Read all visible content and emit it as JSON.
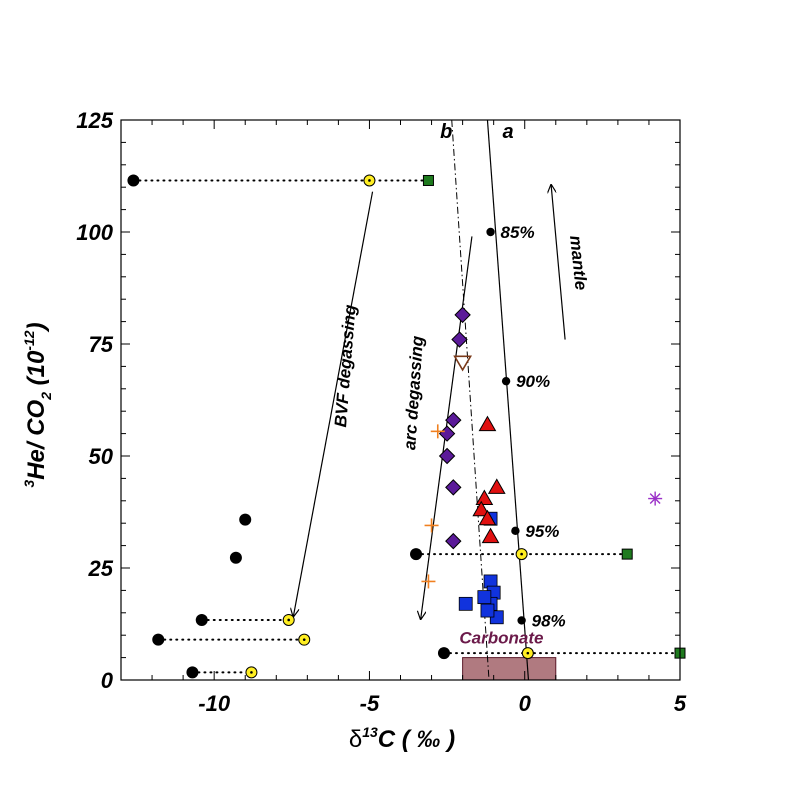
{
  "chart_data": {
    "type": "scatter",
    "xlim": [
      -13,
      5
    ],
    "ylim": [
      0,
      125
    ],
    "x_ticks": [
      -10,
      -5,
      0,
      5
    ],
    "y_ticks": [
      0,
      25,
      50,
      75,
      100,
      125
    ],
    "xlabel": {
      "delta": "δ",
      "sup": "13",
      "main": "C ( ",
      "unit": "‰",
      "close": " )"
    },
    "ylabel": {
      "sup1": "3",
      "main1": "He/ CO",
      "sub": "2",
      "main2": " (10",
      "sup2": "-12",
      "close": ")"
    },
    "colors": {
      "black_point": "#000000",
      "yellow_point": "#ffee22",
      "green_square": "#1e7a1e",
      "purple_diamond": "#5b1a99",
      "red_triangle": "#e01010",
      "blue_square": "#1133dd",
      "orange_cross": "#f08020",
      "brown_triangle": "#7a3a1a",
      "star": "#9b30c8",
      "carbonate_box": "#b07a80",
      "carbonate_text": "#6b1a4a"
    },
    "black_points": [
      {
        "x": -12.6,
        "y": 111.5
      },
      {
        "x": -9.0,
        "y": 35.8
      },
      {
        "x": -9.3,
        "y": 27.3
      },
      {
        "x": -10.4,
        "y": 13.4
      },
      {
        "x": -11.8,
        "y": 9.0
      },
      {
        "x": -10.7,
        "y": 1.7
      },
      {
        "x": -3.5,
        "y": 28.1
      },
      {
        "x": -2.6,
        "y": 6.0
      }
    ],
    "yellow_points": [
      {
        "x": -5.0,
        "y": 111.5
      },
      {
        "x": -7.6,
        "y": 13.4
      },
      {
        "x": -7.1,
        "y": 9.0
      },
      {
        "x": -8.8,
        "y": 1.7
      },
      {
        "x": -0.1,
        "y": 28.1
      },
      {
        "x": 0.1,
        "y": 6.0
      }
    ],
    "green_squares": [
      {
        "x": -3.1,
        "y": 111.5
      },
      {
        "x": 3.3,
        "y": 28.1
      },
      {
        "x": 5.0,
        "y": 6.0
      }
    ],
    "dotted_links": [
      {
        "x1": -12.6,
        "x2": -3.1,
        "y": 111.5
      },
      {
        "x1": -10.4,
        "x2": -7.6,
        "y": 13.4
      },
      {
        "x1": -11.8,
        "x2": -7.1,
        "y": 9.0
      },
      {
        "x1": -10.7,
        "x2": -8.8,
        "y": 1.7
      },
      {
        "x1": -3.5,
        "x2": 3.3,
        "y": 28.1
      },
      {
        "x1": -2.6,
        "x2": 5.0,
        "y": 6.0
      }
    ],
    "purple_diamonds": [
      {
        "x": -2.0,
        "y": 81.5
      },
      {
        "x": -2.1,
        "y": 76.0
      },
      {
        "x": -2.3,
        "y": 58.0
      },
      {
        "x": -2.5,
        "y": 55.0
      },
      {
        "x": -2.5,
        "y": 50.0
      },
      {
        "x": -2.3,
        "y": 43.0
      },
      {
        "x": -2.3,
        "y": 31.0
      }
    ],
    "red_triangles": [
      {
        "x": -1.2,
        "y": 57.0
      },
      {
        "x": -0.9,
        "y": 43.0
      },
      {
        "x": -1.3,
        "y": 40.5
      },
      {
        "x": -1.4,
        "y": 38.0
      },
      {
        "x": -1.2,
        "y": 36.0
      },
      {
        "x": -1.1,
        "y": 32.0
      }
    ],
    "blue_squares": [
      {
        "x": -1.1,
        "y": 36.0
      },
      {
        "x": -1.1,
        "y": 22.0
      },
      {
        "x": -1.0,
        "y": 19.5
      },
      {
        "x": -1.1,
        "y": 17.0
      },
      {
        "x": -1.3,
        "y": 18.5
      },
      {
        "x": -1.9,
        "y": 17.0
      },
      {
        "x": -0.9,
        "y": 14.0
      },
      {
        "x": -1.2,
        "y": 15.5
      }
    ],
    "orange_crosses": [
      {
        "x": -2.8,
        "y": 55.5
      },
      {
        "x": -3.0,
        "y": 34.5
      },
      {
        "x": -3.1,
        "y": 22.0
      }
    ],
    "brown_triangle": {
      "x": -2.0,
      "y": 71.0
    },
    "star": {
      "x": 4.2,
      "y": 40.5
    },
    "mixing_line_a": {
      "label": "a",
      "points": [
        {
          "x": -1.1,
          "y": 100
        },
        {
          "x": -0.6,
          "y": 66.7
        },
        {
          "x": -0.3,
          "y": 33.3
        },
        {
          "x": -0.1,
          "y": 13.3
        }
      ],
      "labels": [
        "85%",
        "90%",
        "95%",
        "98%"
      ]
    },
    "mixing_line_b": {
      "label": "b"
    },
    "annotations": {
      "bvf": "BVF degassing",
      "arc": "arc degassing",
      "mantle": "mantle",
      "carbonate": "Carbonate"
    },
    "carbonate_box": {
      "x1": -2.0,
      "x2": 1.0,
      "y1": 0,
      "y2": 5
    }
  }
}
